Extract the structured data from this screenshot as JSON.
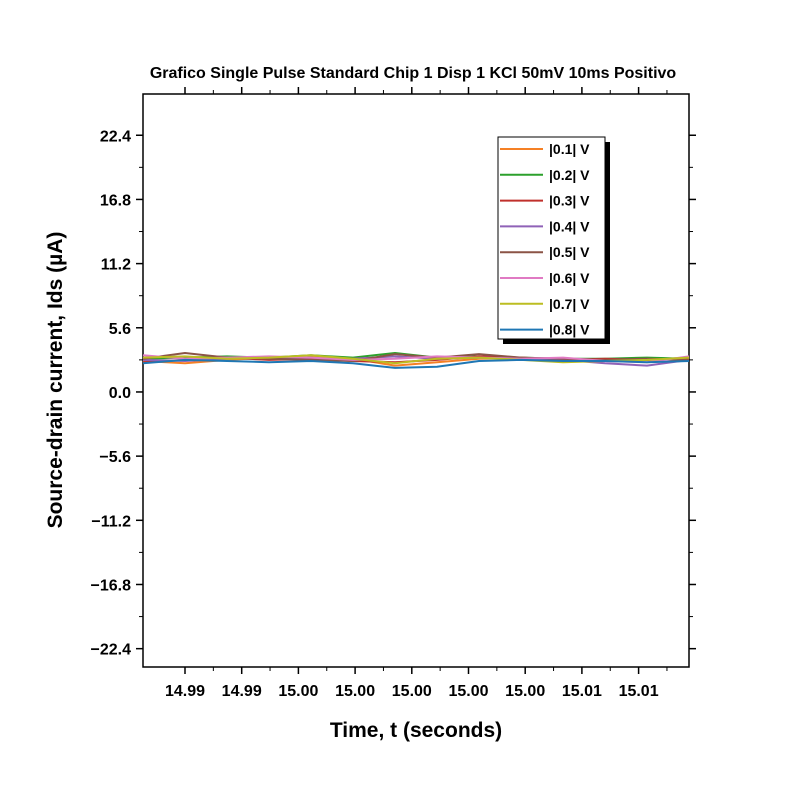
{
  "chart_data": {
    "type": "line",
    "title": "Grafico Single Pulse Standard Chip 1 Disp 1 KCl 50mV 10ms Positivo",
    "xlabel": "Time, t (seconds)",
    "ylabel": "Source-drain current, Ids (µA)",
    "xlim": [
      14.986,
      15.012
    ],
    "ylim": [
      -24.0,
      26.0
    ],
    "x_tick_values": [
      14.988,
      14.9907,
      14.9934,
      14.9961,
      14.9988,
      15.0015,
      15.0042,
      15.0069,
      15.0096
    ],
    "x_tick_labels": [
      "14.99",
      "14.99",
      "15.00",
      "15.00",
      "15.00",
      "15.00",
      "15.00",
      "15.01",
      "15.01"
    ],
    "y_ticks": [
      -22.4,
      -16.8,
      -11.2,
      -5.6,
      0.0,
      5.6,
      11.2,
      16.8,
      22.4
    ],
    "y_tick_labels": [
      "−22.4",
      "−16.8",
      "−11.2",
      "−5.6",
      "0.0",
      "5.6",
      "11.2",
      "16.8",
      "22.4"
    ],
    "grid": false,
    "legend_position": "top-right",
    "x": [
      14.986,
      14.988,
      14.99,
      14.992,
      14.994,
      14.996,
      14.998,
      15.0,
      15.002,
      15.004,
      15.006,
      15.008,
      15.01,
      15.012
    ],
    "series": [
      {
        "name": "|0.1| V",
        "color": "#f58025",
        "values": [
          2.7,
          2.5,
          2.8,
          3.0,
          3.1,
          2.9,
          2.3,
          2.6,
          2.9,
          3.0,
          2.8,
          2.7,
          2.8,
          3.0
        ]
      },
      {
        "name": "|0.2| V",
        "color": "#2ca02c",
        "values": [
          2.9,
          3.0,
          3.1,
          3.0,
          3.2,
          3.0,
          3.4,
          3.0,
          3.1,
          3.0,
          2.9,
          2.9,
          3.0,
          2.9
        ]
      },
      {
        "name": "|0.3| V",
        "color": "#c0302c",
        "values": [
          2.6,
          2.8,
          3.0,
          2.8,
          2.9,
          2.7,
          2.6,
          2.8,
          3.1,
          3.0,
          2.8,
          2.9,
          2.8,
          2.9
        ]
      },
      {
        "name": "|0.4| V",
        "color": "#8f62b7",
        "values": [
          2.8,
          2.7,
          2.9,
          3.0,
          2.8,
          2.9,
          3.1,
          2.9,
          3.0,
          2.9,
          2.8,
          2.5,
          2.3,
          2.8
        ]
      },
      {
        "name": "|0.5| V",
        "color": "#8b5446",
        "values": [
          2.9,
          3.4,
          3.0,
          2.9,
          2.8,
          2.7,
          3.3,
          3.0,
          3.3,
          3.0,
          2.9,
          2.8,
          2.9,
          2.8
        ]
      },
      {
        "name": "|0.6| V",
        "color": "#e07ac3",
        "values": [
          3.2,
          2.9,
          3.0,
          3.1,
          3.0,
          2.8,
          2.9,
          3.1,
          3.0,
          2.9,
          3.0,
          2.7,
          2.6,
          3.1
        ]
      },
      {
        "name": "|0.7| V",
        "color": "#bcbd22",
        "values": [
          3.0,
          3.1,
          2.9,
          3.0,
          3.2,
          2.9,
          2.5,
          2.9,
          3.0,
          2.8,
          2.6,
          2.7,
          2.8,
          3.0
        ]
      },
      {
        "name": "|0.8| V",
        "color": "#1f77b4",
        "values": [
          2.5,
          2.8,
          2.7,
          2.6,
          2.7,
          2.5,
          2.1,
          2.2,
          2.7,
          2.8,
          2.7,
          2.7,
          2.6,
          2.7
        ]
      }
    ]
  }
}
